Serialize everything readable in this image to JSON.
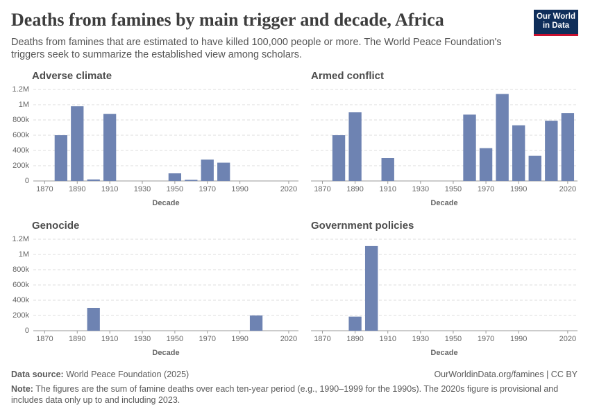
{
  "header": {
    "title": "Deaths from famines by main trigger and decade, Africa",
    "subtitle": "Deaths from famines that are estimated to have killed 100,000 people or more. The World Peace Foundation's triggers seek to summarize the established view among scholars.",
    "logo": [
      "Our World",
      "in Data"
    ]
  },
  "chart_data": [
    {
      "type": "bar",
      "title": "Adverse climate",
      "xlabel": "Decade",
      "color": "#6e83b2",
      "x": [
        1880,
        1890,
        1900,
        1910,
        1950,
        1960,
        1970,
        1980
      ],
      "values": [
        600000,
        980000,
        20000,
        880000,
        100000,
        15000,
        280000,
        240000
      ],
      "xlim": [
        1863,
        2026
      ],
      "xticks": [
        1870,
        1890,
        1910,
        1930,
        1950,
        1970,
        1990,
        2020
      ],
      "ylim": [
        0,
        1200000
      ],
      "yticks": [
        {
          "value": 0,
          "label": "0"
        },
        {
          "value": 200000,
          "label": "200k"
        },
        {
          "value": 400000,
          "label": "400k"
        },
        {
          "value": 600000,
          "label": "600k"
        },
        {
          "value": 800000,
          "label": "800k"
        },
        {
          "value": 1000000,
          "label": "1M"
        },
        {
          "value": 1200000,
          "label": "1.2M"
        }
      ],
      "grid": true
    },
    {
      "type": "bar",
      "title": "Armed conflict",
      "xlabel": "Decade",
      "color": "#6e83b2",
      "x": [
        1880,
        1890,
        1910,
        1960,
        1970,
        1980,
        1990,
        2000,
        2010,
        2020
      ],
      "values": [
        600000,
        900000,
        300000,
        870000,
        430000,
        1140000,
        730000,
        330000,
        790000,
        890000
      ],
      "xlim": [
        1863,
        2026
      ],
      "xticks": [
        1870,
        1890,
        1910,
        1930,
        1950,
        1970,
        1990,
        2020
      ],
      "ylim": [
        0,
        1200000
      ],
      "yticks": [
        0,
        200000,
        400000,
        600000,
        800000,
        1000000,
        1200000
      ],
      "grid": true
    },
    {
      "type": "bar",
      "title": "Genocide",
      "xlabel": "Decade",
      "color": "#6e83b2",
      "x": [
        1900,
        2000
      ],
      "values": [
        300000,
        200000
      ],
      "xlim": [
        1863,
        2026
      ],
      "xticks": [
        1870,
        1890,
        1910,
        1930,
        1950,
        1970,
        1990,
        2020
      ],
      "ylim": [
        0,
        1200000
      ],
      "yticks": [
        {
          "value": 0,
          "label": "0"
        },
        {
          "value": 200000,
          "label": "200k"
        },
        {
          "value": 400000,
          "label": "400k"
        },
        {
          "value": 600000,
          "label": "600k"
        },
        {
          "value": 800000,
          "label": "800k"
        },
        {
          "value": 1000000,
          "label": "1M"
        },
        {
          "value": 1200000,
          "label": "1.2M"
        }
      ],
      "grid": true
    },
    {
      "type": "bar",
      "title": "Government policies",
      "xlabel": "Decade",
      "color": "#6e83b2",
      "x": [
        1890,
        1900
      ],
      "values": [
        185000,
        1110000
      ],
      "xlim": [
        1863,
        2026
      ],
      "xticks": [
        1870,
        1890,
        1910,
        1930,
        1950,
        1970,
        1990,
        2020
      ],
      "ylim": [
        0,
        1200000
      ],
      "yticks": [
        0,
        200000,
        400000,
        600000,
        800000,
        1000000,
        1200000
      ],
      "grid": true
    }
  ],
  "footer": {
    "source_label": "Data source:",
    "source": "World Peace Foundation (2025)",
    "url": "OurWorldinData.org/famines | CC BY",
    "note_label": "Note:",
    "note": "The figures are the sum of famine deaths over each ten-year period (e.g., 1990–1999 for the 1990s). The 2020s figure is provisional and includes data only up to and including 2023."
  }
}
